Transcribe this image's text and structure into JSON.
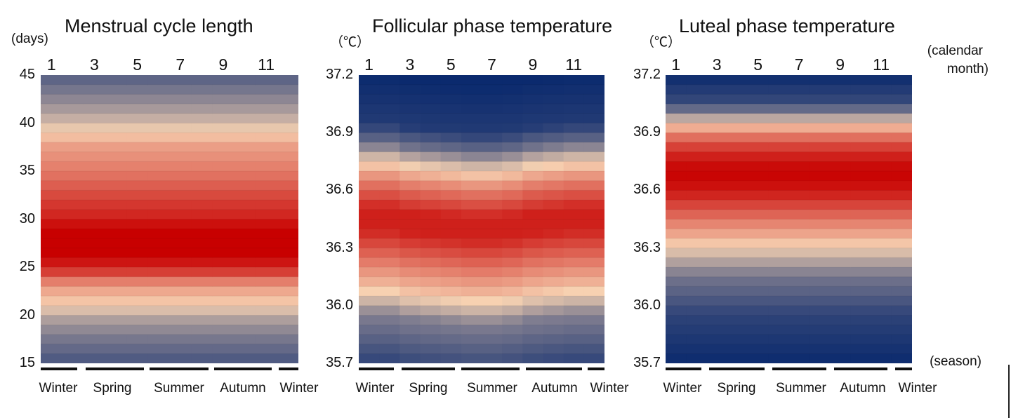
{
  "chart_data": [
    {
      "type": "heatmap",
      "title": "Menstrual cycle length",
      "ylabel": "(days)",
      "ylim": [
        15,
        45
      ],
      "y_ticks": [
        "45",
        "40",
        "35",
        "30",
        "25",
        "20",
        "15"
      ],
      "x_ticks": [
        "1",
        "3",
        "5",
        "7",
        "9",
        "11"
      ],
      "months": 12,
      "seasons": [
        "Winter",
        "Spring",
        "Summer",
        "Autumn",
        "Winter"
      ],
      "profile": [
        {
          "y": 45,
          "level": -0.7
        },
        {
          "y": 42,
          "level": -0.4
        },
        {
          "y": 40,
          "level": -0.15
        },
        {
          "y": 38.5,
          "level": 0.1
        },
        {
          "y": 37.5,
          "level": 0.25
        },
        {
          "y": 36,
          "level": 0.35
        },
        {
          "y": 34,
          "level": 0.5
        },
        {
          "y": 32,
          "level": 0.7
        },
        {
          "y": 30,
          "level": 0.85
        },
        {
          "y": 29,
          "level": 1.0
        },
        {
          "y": 26,
          "level": 1.0
        },
        {
          "y": 24.5,
          "level": 0.7
        },
        {
          "y": 23.5,
          "level": 0.4
        },
        {
          "y": 22.5,
          "level": 0.2
        },
        {
          "y": 21,
          "level": 0.0
        },
        {
          "y": 20,
          "level": -0.25
        },
        {
          "y": 18,
          "level": -0.5
        },
        {
          "y": 15,
          "level": -0.75
        }
      ],
      "monthly_shift": [
        0,
        0,
        0,
        0,
        0,
        0,
        0,
        0,
        0,
        0,
        0,
        0
      ],
      "colors": {
        "low": "#0b2a6e",
        "mid": "#f7d2b2",
        "high": "#c80000"
      }
    },
    {
      "type": "heatmap",
      "title": "Follicular phase temperature",
      "ylabel": "（℃）",
      "ylim": [
        35.7,
        37.2
      ],
      "y_ticks": [
        "37.2",
        "36.9",
        "36.6",
        "36.3",
        "36.0",
        "35.7"
      ],
      "x_ticks": [
        "1",
        "3",
        "5",
        "7",
        "9",
        "11"
      ],
      "months": 12,
      "seasons": [
        "Winter",
        "Spring",
        "Summer",
        "Autumn",
        "Winter"
      ],
      "profile": [
        {
          "y": 37.2,
          "level": -1.0
        },
        {
          "y": 36.95,
          "level": -0.9
        },
        {
          "y": 36.85,
          "level": -0.6
        },
        {
          "y": 36.78,
          "level": -0.2
        },
        {
          "y": 36.72,
          "level": 0.1
        },
        {
          "y": 36.66,
          "level": 0.35
        },
        {
          "y": 36.6,
          "level": 0.55
        },
        {
          "y": 36.5,
          "level": 0.85
        },
        {
          "y": 36.4,
          "level": 0.85
        },
        {
          "y": 36.3,
          "level": 0.6
        },
        {
          "y": 36.2,
          "level": 0.35
        },
        {
          "y": 36.1,
          "level": 0.1
        },
        {
          "y": 36.02,
          "level": -0.2
        },
        {
          "y": 35.95,
          "level": -0.5
        },
        {
          "y": 35.7,
          "level": -0.85
        }
      ],
      "monthly_shift": [
        0,
        0,
        0.02,
        0.03,
        0.04,
        0.05,
        0.05,
        0.04,
        0.02,
        0.01,
        0,
        0
      ],
      "colors": {
        "low": "#0b2a6e",
        "mid": "#f7d2b2",
        "high": "#c80000"
      }
    },
    {
      "type": "heatmap",
      "title": "Luteal phase temperature",
      "ylabel": "（℃）",
      "ylim": [
        35.7,
        37.2
      ],
      "y_ticks": [
        "37.2",
        "36.9",
        "36.6",
        "36.3",
        "36.0",
        "35.7"
      ],
      "x_ticks": [
        "1",
        "3",
        "5",
        "7",
        "9",
        "11"
      ],
      "months": 12,
      "seasons": [
        "Winter",
        "Spring",
        "Summer",
        "Autumn",
        "Winter"
      ],
      "profile": [
        {
          "y": 37.2,
          "level": -1.0
        },
        {
          "y": 37.05,
          "level": -0.8
        },
        {
          "y": 36.98,
          "level": -0.3
        },
        {
          "y": 36.93,
          "level": 0.15
        },
        {
          "y": 36.88,
          "level": 0.45
        },
        {
          "y": 36.8,
          "level": 0.8
        },
        {
          "y": 36.7,
          "level": 1.0
        },
        {
          "y": 36.6,
          "level": 0.9
        },
        {
          "y": 36.5,
          "level": 0.6
        },
        {
          "y": 36.42,
          "level": 0.35
        },
        {
          "y": 36.35,
          "level": 0.15
        },
        {
          "y": 36.27,
          "level": -0.15
        },
        {
          "y": 36.15,
          "level": -0.55
        },
        {
          "y": 35.95,
          "level": -0.85
        },
        {
          "y": 35.7,
          "level": -1.0
        }
      ],
      "monthly_shift": [
        0,
        0,
        0,
        0,
        0,
        0,
        0,
        0,
        0,
        0,
        0,
        0
      ],
      "colors": {
        "low": "#0b2a6e",
        "mid": "#f7d2b2",
        "high": "#c80000"
      }
    }
  ],
  "labels": {
    "month_axis_line1": "(calendar",
    "month_axis_line2": "month)",
    "season_axis": "(season)"
  }
}
